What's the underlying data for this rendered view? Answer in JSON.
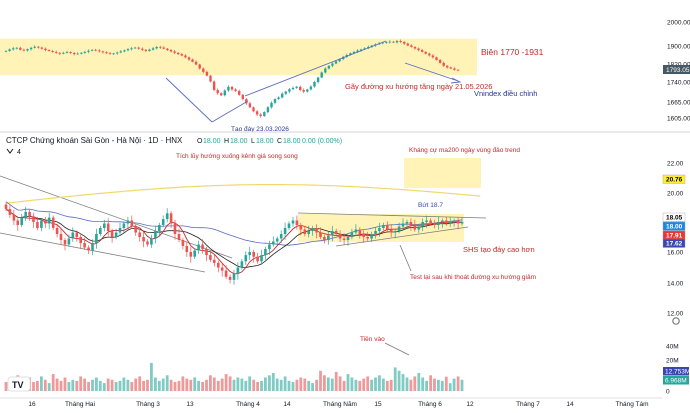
{
  "vnindex_panel": {
    "price_scale": [
      "2000.00",
      "1900.00",
      "1820.00",
      "1740.00",
      "1665.00",
      "1605.00"
    ],
    "price_scale_values": [
      2000,
      1900,
      1820,
      1740,
      1665,
      1605
    ],
    "last_price": "1793.05",
    "band_label": "Biên 1770 -1931",
    "uptrend_note": "Gãy đường xu hướng tăng ngày 21.05.2026",
    "correction_note": "Vnindex điều chỉnh",
    "bottom_note": "Tạo đáy 23.03.2026",
    "band_range": [
      1770,
      1931
    ],
    "colors": {
      "band": "#fff3b8",
      "up": "#26a69a",
      "down": "#ef5350",
      "note": "#c62828",
      "blue_note": "#283593"
    }
  },
  "shs_panel": {
    "title": "CTCP Chứng khoán Sài Gòn - Hà Nội · 1D · HNX",
    "ohlc": {
      "o_label": "O",
      "o": "18.00",
      "h_label": "H",
      "h": "18.00",
      "l_label": "L",
      "l": "18.00",
      "c_label": "C",
      "c": "18.00",
      "change": "0.00 (0.00%)"
    },
    "indicator_count": "4",
    "price_scale": [
      "22.00",
      "20.00",
      "18.00",
      "16.00",
      "14.00",
      "12.00"
    ],
    "price_scale_values": [
      22,
      20,
      18,
      16,
      14,
      12
    ],
    "price_tags": [
      {
        "value": "20.76",
        "bg": "#ffeb3b",
        "fg": "#000000",
        "price": 20.76
      },
      {
        "value": "18.05",
        "bg": "#ffffff",
        "fg": "#000000",
        "price": 18.05
      },
      {
        "value": "18.00",
        "bg": "#1e88e5",
        "fg": "#ffffff",
        "price": 18.0
      },
      {
        "value": "17.91",
        "bg": "#e53935",
        "fg": "#ffffff",
        "price": 17.91
      },
      {
        "value": "17.62",
        "bg": "#3949ab",
        "fg": "#ffffff",
        "price": 17.62
      }
    ],
    "notes": {
      "accumulation": "Tích lũy hướng xuống kênh giá song song",
      "ma200": "Kháng cự ma200 ngày vùng đảo trend",
      "breakout": "Bứt 18.7",
      "higher_low": "SHS tạo đáy cao hơn",
      "retest": "Test lại sau khi thoát đường xu hướng giảm",
      "inflow": "Tiền vào"
    },
    "volume_scale": [
      "40M",
      "20M",
      "0"
    ],
    "volume_scale_values": [
      40,
      20,
      0
    ],
    "volume_tags": [
      {
        "value": "12.753M",
        "bg": "#3949ab",
        "fg": "#ffffff",
        "vol": 12.753
      },
      {
        "value": "6.968M",
        "bg": "#26a69a",
        "fg": "#ffffff",
        "vol": 6.968
      }
    ],
    "colors": {
      "up": "#26a69a",
      "down": "#ef5350",
      "vol_up": "#80cbc4",
      "vol_down": "#ef9a9a",
      "ma200": "#f0d96a",
      "ma_blue": "#5c6bc0",
      "ma_red": "#c62828",
      "ma_dark": "#212121",
      "band": "#fff3b8",
      "note": "#c62828",
      "blue_note": "#3949ab"
    }
  },
  "time_axis": [
    "16",
    "Tháng Hai",
    "Tháng 3",
    "13",
    "Tháng 4",
    "14",
    "Tháng Năm",
    "15",
    "Tháng 6",
    "12",
    "Tháng 7",
    "14",
    "Tháng Tám"
  ],
  "logo": "TV",
  "chart_data": [
    {
      "type": "candlestick",
      "title": "VNINDEX",
      "ylim": [
        1590,
        2010
      ],
      "band": [
        1770,
        1931
      ],
      "closes": [
        1878,
        1885,
        1890,
        1892,
        1883,
        1880,
        1886,
        1892,
        1897,
        1893,
        1888,
        1882,
        1878,
        1874,
        1870,
        1866,
        1870,
        1873,
        1869,
        1864,
        1866,
        1870,
        1874,
        1879,
        1883,
        1880,
        1876,
        1872,
        1868,
        1865,
        1867,
        1871,
        1876,
        1881,
        1886,
        1890,
        1893,
        1888,
        1883,
        1878,
        1884,
        1890,
        1896,
        1893,
        1888,
        1882,
        1876,
        1870,
        1864,
        1858,
        1850,
        1840,
        1830,
        1818,
        1800,
        1785,
        1768,
        1742,
        1710,
        1698,
        1690,
        1708,
        1722,
        1712,
        1706,
        1692,
        1676,
        1660,
        1645,
        1630,
        1618,
        1612,
        1627,
        1645,
        1662,
        1676,
        1682,
        1696,
        1704,
        1713,
        1718,
        1722,
        1710,
        1704,
        1712,
        1723,
        1740,
        1760,
        1782,
        1800,
        1812,
        1822,
        1832,
        1842,
        1852,
        1860,
        1868,
        1874,
        1880,
        1885,
        1890,
        1896,
        1902,
        1907,
        1911,
        1914,
        1916,
        1918,
        1915,
        1921,
        1917,
        1910,
        1902,
        1896,
        1889,
        1882,
        1874,
        1866,
        1858,
        1850,
        1838,
        1825,
        1812,
        1805,
        1800,
        1794,
        1793.05
      ]
    },
    {
      "type": "candlestick",
      "title": "CTCP Chứng khoán Sài Gòn - Hà Nội · 1D · HNX",
      "ylim": [
        11.5,
        23.5
      ],
      "closes": [
        18.9,
        18.5,
        18.1,
        17.8,
        18.3,
        18.7,
        18.4,
        18.0,
        17.6,
        18.1,
        17.9,
        18.3,
        17.6,
        17.2,
        16.8,
        16.5,
        16.9,
        17.3,
        17.0,
        16.6,
        16.3,
        16.1,
        16.6,
        17.2,
        17.6,
        17.9,
        17.4,
        17.0,
        17.3,
        17.6,
        17.9,
        18.1,
        17.7,
        17.3,
        17.0,
        16.7,
        16.5,
        16.9,
        17.4,
        17.8,
        18.2,
        18.6,
        17.9,
        17.2,
        16.8,
        16.4,
        16.0,
        15.7,
        16.1,
        16.5,
        16.2,
        15.8,
        15.5,
        15.3,
        15.0,
        14.8,
        14.4,
        14.2,
        14.6,
        15.0,
        15.4,
        15.8,
        16.0,
        15.7,
        15.4,
        15.8,
        16.2,
        16.5,
        16.7,
        16.9,
        17.2,
        17.6,
        17.9,
        18.1,
        17.8,
        17.5,
        17.2,
        17.4,
        17.6,
        17.3,
        17.0,
        16.8,
        17.1,
        17.4,
        17.2,
        16.9,
        16.8,
        17.0,
        17.3,
        17.5,
        17.2,
        17.0,
        16.9,
        17.2,
        17.4,
        17.6,
        17.8,
        17.5,
        17.3,
        17.4,
        17.7,
        17.9,
        18.0,
        17.8,
        17.5,
        17.7,
        18.0,
        18.1,
        17.9,
        17.8,
        18.0,
        18.1,
        17.9,
        18.0,
        18.1,
        17.9,
        18.0
      ],
      "volumes": [
        8,
        11,
        9,
        14,
        7,
        10,
        12,
        8,
        9,
        13,
        10,
        7,
        15,
        11,
        9,
        12,
        8,
        10,
        9,
        13,
        11,
        8,
        10,
        12,
        9,
        7,
        11,
        10,
        8,
        9,
        12,
        10,
        8,
        11,
        13,
        9,
        10,
        25,
        12,
        9,
        11,
        14,
        10,
        8,
        9,
        13,
        11,
        10,
        12,
        9,
        8,
        10,
        14,
        12,
        9,
        11,
        15,
        13,
        10,
        12,
        11,
        9,
        13,
        10,
        8,
        9,
        12,
        14,
        16,
        11,
        10,
        13,
        9,
        8,
        10,
        12,
        11,
        9,
        7,
        10,
        18,
        14,
        12,
        11,
        17,
        13,
        9,
        15,
        12,
        10,
        9,
        11,
        13,
        10,
        12,
        14,
        11,
        9,
        10,
        21,
        18,
        15,
        12,
        10,
        13,
        16,
        12,
        9,
        14,
        11,
        10,
        9,
        12.753,
        6.968,
        11,
        13,
        10
      ]
    }
  ]
}
